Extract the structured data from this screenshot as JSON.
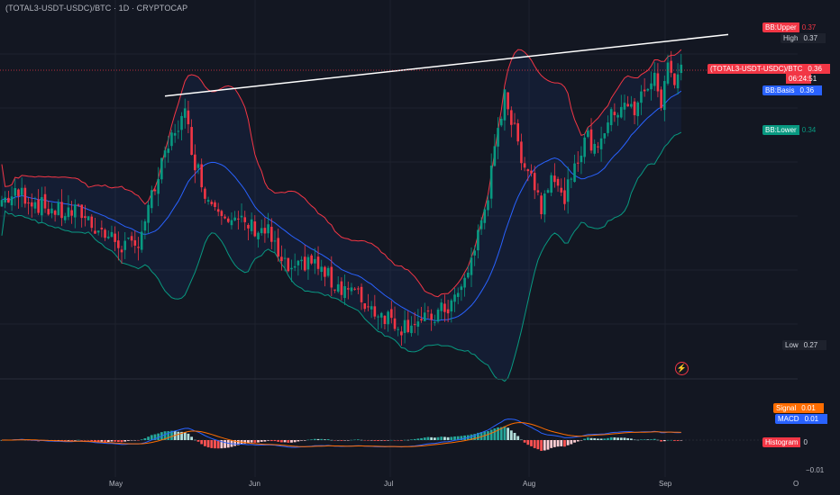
{
  "header": {
    "title": "(TOTAL3-USDT-USDC)/BTC · 1D · CRYPTOCAP"
  },
  "colors": {
    "up": "#089981",
    "down": "#f23645",
    "basis": "#2962ff",
    "band_upper": "#f23645",
    "band_lower": "#089981",
    "macd": "#2962ff",
    "signal": "#ff6d00",
    "bg": "#131722"
  },
  "labels": {
    "bb_upper": {
      "key": "BB:Upper",
      "value": "0.37"
    },
    "high": {
      "key": "High",
      "value": "0.37"
    },
    "symbol": {
      "key": "(TOTAL3-USDT-USDC)/BTC",
      "value": "0.36",
      "countdown": "06:24:51"
    },
    "bb_basis": {
      "key": "BB:Basis",
      "value": "0.36"
    },
    "bb_lower": {
      "key": "BB:Lower",
      "value": "0.34"
    },
    "low": {
      "key": "Low",
      "value": "0.27"
    },
    "signal": {
      "key": "Signal",
      "value": "0.01"
    },
    "macd": {
      "key": "MACD",
      "value": "0.01"
    },
    "histogram": {
      "key": "Histogram",
      "value": "0"
    },
    "macd_axis_low": "−0.01"
  },
  "x_axis": {
    "ticks": [
      "May",
      "Jun",
      "Jul",
      "Aug",
      "Sep",
      "O"
    ]
  },
  "chart_data": [
    {
      "type": "candlestick",
      "indicator": "Bollinger Bands",
      "trendline": {
        "from": {
          "date": "May 11",
          "value": 0.352
        },
        "to": {
          "date": "Sep 22",
          "value": 0.371
        }
      },
      "current_price": 0.36,
      "close_path": [
        [
          0,
          0.32
        ],
        [
          6,
          0.322
        ],
        [
          12,
          0.318
        ],
        [
          18,
          0.316
        ],
        [
          24,
          0.316
        ],
        [
          30,
          0.31
        ],
        [
          36,
          0.306
        ],
        [
          40,
          0.305
        ],
        [
          44,
          0.317
        ],
        [
          48,
          0.33
        ],
        [
          52,
          0.342
        ],
        [
          55,
          0.346
        ],
        [
          58,
          0.332
        ],
        [
          62,
          0.32
        ],
        [
          66,
          0.318
        ],
        [
          70,
          0.313
        ],
        [
          74,
          0.312
        ],
        [
          80,
          0.31
        ],
        [
          84,
          0.3
        ],
        [
          88,
          0.297
        ],
        [
          92,
          0.302
        ],
        [
          96,
          0.298
        ],
        [
          100,
          0.294
        ],
        [
          104,
          0.293
        ],
        [
          108,
          0.289
        ],
        [
          112,
          0.286
        ],
        [
          116,
          0.284
        ],
        [
          120,
          0.281
        ],
        [
          124,
          0.283
        ],
        [
          126,
          0.282
        ],
        [
          130,
          0.284
        ],
        [
          134,
          0.287
        ],
        [
          138,
          0.292
        ],
        [
          142,
          0.305
        ],
        [
          146,
          0.322
        ],
        [
          149,
          0.34
        ],
        [
          151,
          0.355
        ],
        [
          153,
          0.344
        ],
        [
          156,
          0.334
        ],
        [
          159,
          0.328
        ],
        [
          162,
          0.318
        ],
        [
          165,
          0.33
        ],
        [
          168,
          0.32
        ],
        [
          171,
          0.325
        ],
        [
          175,
          0.34
        ],
        [
          178,
          0.336
        ],
        [
          181,
          0.342
        ],
        [
          184,
          0.347
        ],
        [
          187,
          0.351
        ],
        [
          190,
          0.346
        ],
        [
          193,
          0.355
        ],
        [
          196,
          0.357
        ],
        [
          198,
          0.35
        ],
        [
          200,
          0.361
        ],
        [
          202,
          0.358
        ],
        [
          204,
          0.362
        ]
      ]
    },
    {
      "type": "macd",
      "series": [
        {
          "name": "MACD",
          "value": 0.01
        },
        {
          "name": "Signal",
          "value": 0.01
        },
        {
          "name": "Histogram",
          "value": 0
        }
      ]
    }
  ]
}
